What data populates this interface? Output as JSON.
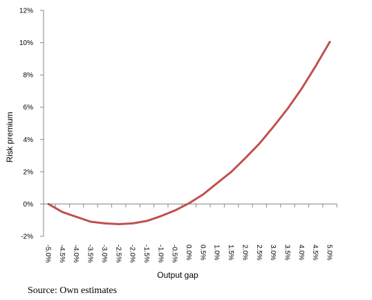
{
  "chart_data": {
    "type": "line",
    "title": "",
    "xlabel": "Output gap",
    "ylabel": "Risk premium",
    "ylim": [
      -2,
      12
    ],
    "y_ticks": [
      -2,
      0,
      2,
      4,
      6,
      8,
      10,
      12
    ],
    "y_tick_labels": [
      "-2%",
      "0%",
      "2%",
      "4%",
      "6%",
      "8%",
      "10%",
      "12%"
    ],
    "x": [
      -5.0,
      -4.5,
      -4.0,
      -3.5,
      -3.0,
      -2.5,
      -2.0,
      -1.5,
      -1.0,
      -0.5,
      0.0,
      0.5,
      1.0,
      1.5,
      2.0,
      2.5,
      3.0,
      3.5,
      4.0,
      4.5,
      5.0
    ],
    "x_tick_labels": [
      "-5.0%",
      "-4.5%",
      "-4.0%",
      "-3.5%",
      "-3.0%",
      "-2.5%",
      "-2.0%",
      "-1.5%",
      "-1.0%",
      "-0.5%",
      "0.0%",
      "0.5%",
      "1.0%",
      "1.5%",
      "2.0%",
      "2.5%",
      "3.0%",
      "3.5%",
      "4.0%",
      "4.5%",
      "5.0%"
    ],
    "grid": false,
    "legend": "none",
    "series": [
      {
        "color": "#c0504d",
        "values": [
          0.0,
          -0.5,
          -0.8,
          -1.1,
          -1.2,
          -1.25,
          -1.2,
          -1.05,
          -0.75,
          -0.4,
          0.05,
          0.6,
          1.3,
          2.0,
          2.85,
          3.75,
          4.8,
          5.9,
          7.15,
          8.55,
          10.05
        ]
      }
    ]
  },
  "source_note": "Source: Own estimates"
}
